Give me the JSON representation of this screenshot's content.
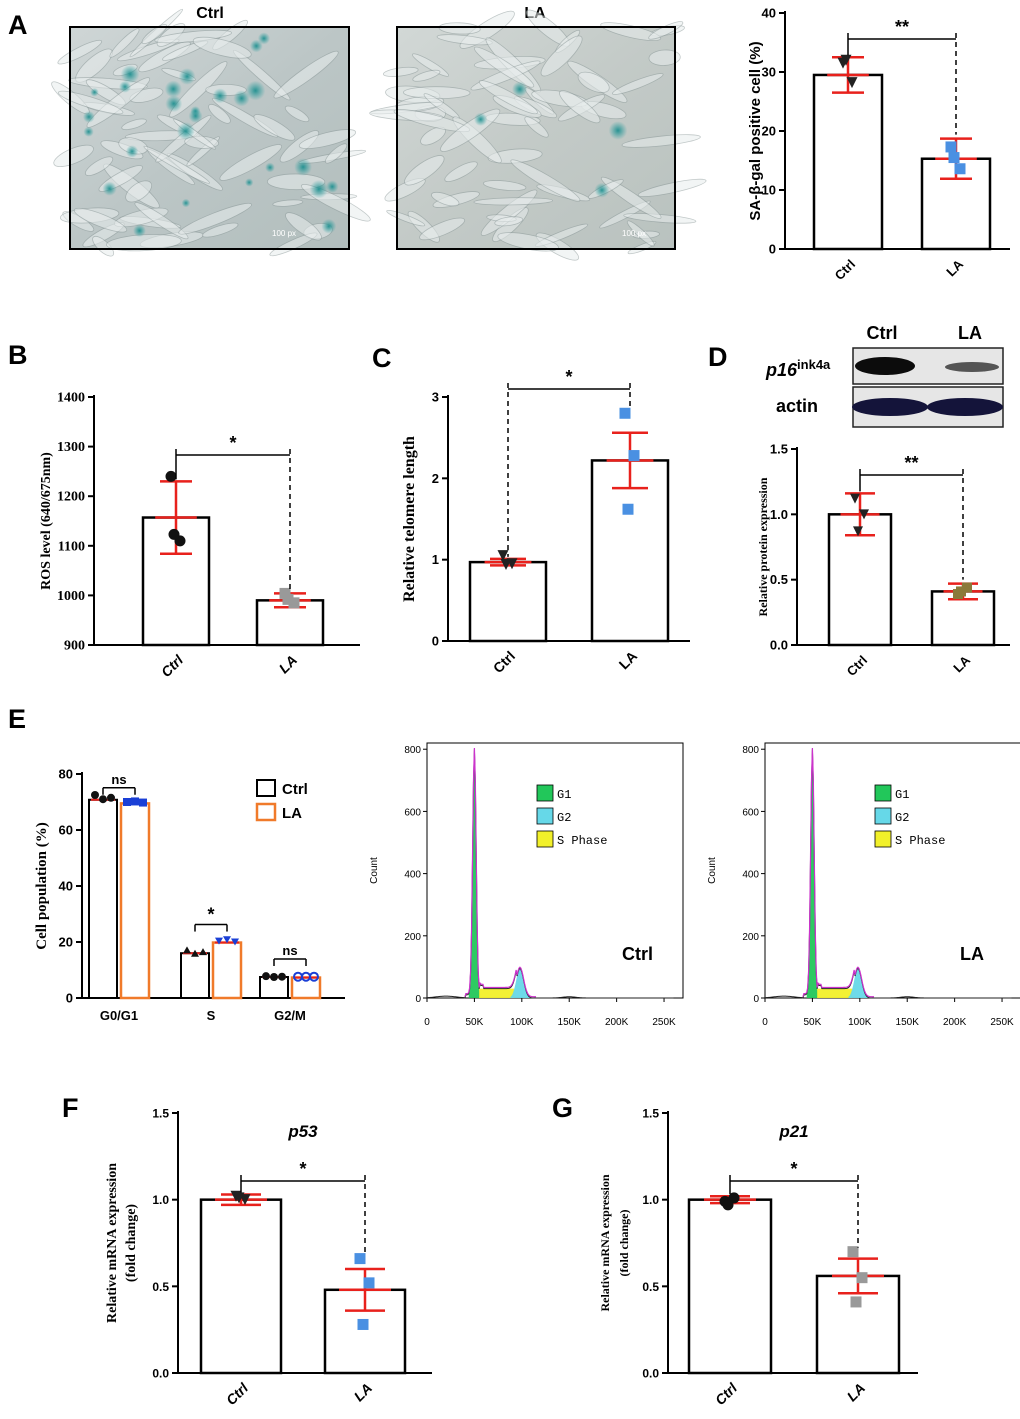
{
  "panel_labels": {
    "A": "A",
    "B": "B",
    "C": "C",
    "D": "D",
    "E": "E",
    "F": "F",
    "G": "G"
  },
  "micrographs": {
    "ctrl": {
      "title": "Ctrl",
      "scale": "100 px"
    },
    "la": {
      "title": "LA",
      "scale": "100 px"
    }
  },
  "western_blot": {
    "lanes": [
      "Ctrl",
      "LA"
    ],
    "row1_base": "p16",
    "row1_sup": "ink4a",
    "row2": "actin"
  },
  "flow": {
    "legend": [
      "G1",
      "G2",
      "S Phase"
    ],
    "x_ticks": [
      "0",
      "50K",
      "100K",
      "150K",
      "200K",
      "250K"
    ],
    "y_ticks": [
      "0",
      "200",
      "400",
      "600",
      "800"
    ],
    "ylabel": "Count",
    "left_label": "Ctrl",
    "right_label": "LA"
  },
  "chart_data": [
    {
      "id": "sa_bgal",
      "type": "bar",
      "panel": "A",
      "categories": [
        "Ctrl",
        "LA"
      ],
      "values": [
        29.5,
        15.3
      ],
      "err": [
        3.0,
        3.4
      ],
      "points": [
        [
          31.5,
          28.2,
          32.0
        ],
        [
          17.3,
          13.6,
          15.5
        ]
      ],
      "ylabel": "SA-β-gal positive cell (%)",
      "ylim": [
        0,
        40
      ],
      "yticks": [
        "0",
        "10",
        "20",
        "30",
        "40"
      ],
      "significance": "**"
    },
    {
      "id": "ros",
      "type": "bar",
      "panel": "B",
      "categories": [
        "Ctrl",
        "LA"
      ],
      "values": [
        1157,
        990
      ],
      "err": [
        73,
        14
      ],
      "points": [
        [
          1240,
          1110,
          1123
        ],
        [
          1004,
          985,
          992
        ]
      ],
      "ylabel": "ROS level (640/675nm)",
      "ylim": [
        900,
        1400
      ],
      "yticks": [
        "900",
        "1000",
        "1100",
        "1200",
        "1300",
        "1400"
      ],
      "significance": "*"
    },
    {
      "id": "telomere",
      "type": "bar",
      "panel": "C",
      "categories": [
        "Ctrl",
        "LA"
      ],
      "values": [
        0.97,
        2.22
      ],
      "err": [
        0.04,
        0.34
      ],
      "points": [
        [
          1.05,
          0.95,
          0.94
        ],
        [
          2.8,
          2.28,
          1.62
        ]
      ],
      "ylabel": "Relative telomere length",
      "ylim": [
        0,
        3
      ],
      "yticks": [
        "0",
        "1",
        "2",
        "3"
      ],
      "significance": "*"
    },
    {
      "id": "p16_protein",
      "type": "bar",
      "panel": "D",
      "categories": [
        "Ctrl",
        "LA"
      ],
      "values": [
        1.0,
        0.41
      ],
      "err": [
        0.16,
        0.06
      ],
      "points": [
        [
          1.12,
          1.0,
          0.87
        ],
        [
          0.39,
          0.44,
          0.41
        ]
      ],
      "ylabel": "Relative protein expression",
      "ylim": [
        0,
        1.5
      ],
      "yticks": [
        "0.0",
        "0.5",
        "1.0",
        "1.5"
      ],
      "significance": "**"
    },
    {
      "id": "cell_cycle",
      "type": "bar",
      "panel": "E",
      "categories": [
        "G0/G1",
        "S",
        "G2/M"
      ],
      "series": [
        {
          "name": "Ctrl",
          "values": [
            70.8,
            16.0,
            7.5
          ]
        },
        {
          "name": "LA",
          "values": [
            69.5,
            19.8,
            7.3
          ]
        }
      ],
      "ylabel": "Cell population (%)",
      "ylim": [
        0,
        80
      ],
      "yticks": [
        "0",
        "20",
        "40",
        "60",
        "80"
      ],
      "significance": [
        "ns",
        "*",
        "ns"
      ]
    },
    {
      "id": "p53",
      "type": "bar",
      "panel": "F",
      "title": "p53",
      "categories": [
        "Ctrl",
        "LA"
      ],
      "values": [
        1.0,
        0.48
      ],
      "err": [
        0.03,
        0.12
      ],
      "points": [
        [
          1.02,
          1.0,
          1.01
        ],
        [
          0.66,
          0.52,
          0.28
        ]
      ],
      "ylabel": "Relative mRNA expression",
      "ylabel2": "(fold change)",
      "ylim": [
        0,
        1.5
      ],
      "yticks": [
        "0.0",
        "0.5",
        "1.0",
        "1.5"
      ],
      "significance": "*"
    },
    {
      "id": "p21",
      "type": "bar",
      "panel": "G",
      "title": "p21",
      "categories": [
        "Ctrl",
        "LA"
      ],
      "values": [
        1.0,
        0.56
      ],
      "err": [
        0.02,
        0.1
      ],
      "points": [
        [
          0.99,
          1.01,
          0.97
        ],
        [
          0.7,
          0.55,
          0.41
        ]
      ],
      "ylabel": "Relative mRNA expression",
      "ylabel2": "(fold change)",
      "ylim": [
        0,
        1.5
      ],
      "yticks": [
        "0.0",
        "0.5",
        "1.0",
        "1.5"
      ],
      "significance": "*"
    }
  ],
  "colors": {
    "error_bar": "#e8211c",
    "la_bar": "#f07a2a",
    "stain": "#2a9a9a",
    "g1": "#22c75a",
    "g2": "#66d8e8",
    "s_phase": "#f2f02a",
    "envelope": "#cc33cc",
    "blue_marker": "#4a90e2",
    "gray_marker": "#999999",
    "olive_marker": "#8b7a3a"
  }
}
